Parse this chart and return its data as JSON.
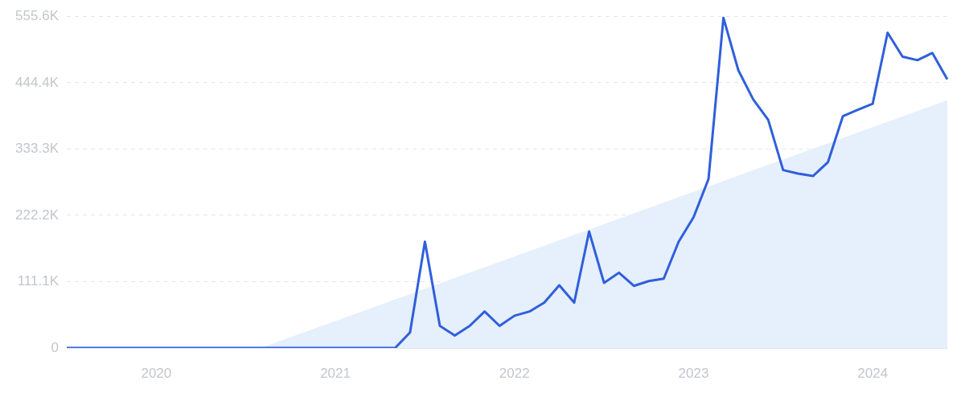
{
  "chart_data": {
    "type": "line",
    "categories": [
      null,
      null,
      null,
      null,
      null,
      null,
      "2020",
      null,
      null,
      null,
      null,
      null,
      null,
      null,
      null,
      null,
      null,
      null,
      "2021",
      null,
      null,
      null,
      null,
      null,
      null,
      null,
      null,
      null,
      null,
      null,
      "2022",
      null,
      null,
      null,
      null,
      null,
      null,
      null,
      null,
      null,
      null,
      null,
      "2023",
      null,
      null,
      null,
      null,
      null,
      null,
      null,
      null,
      null,
      null,
      null,
      "2024",
      null,
      null,
      null,
      null,
      null
    ],
    "series": [
      {
        "type": "line",
        "color": "#2f5fdc",
        "values": [
          0,
          0,
          0,
          0,
          0,
          0,
          0,
          0,
          0,
          0,
          0,
          0,
          0,
          0,
          0,
          0,
          0,
          0,
          0,
          0,
          0,
          0,
          0,
          26000,
          178000,
          37000,
          21000,
          37000,
          61000,
          37000,
          54000,
          61000,
          76000,
          105000,
          76000,
          195000,
          109000,
          126000,
          104000,
          112000,
          116000,
          178000,
          219000,
          283000,
          553000,
          465000,
          416000,
          382000,
          298000,
          292000,
          288000,
          311000,
          388000,
          399000,
          409000,
          528000,
          488000,
          482000,
          494000,
          450000
        ]
      },
      {
        "type": "area",
        "color": "#e6effc",
        "values": [
          null,
          null,
          null,
          null,
          null,
          null,
          null,
          null,
          null,
          null,
          null,
          null,
          null,
          0,
          null,
          null,
          null,
          null,
          null,
          null,
          null,
          null,
          null,
          null,
          null,
          null,
          null,
          null,
          null,
          null,
          null,
          null,
          null,
          null,
          null,
          null,
          null,
          null,
          null,
          null,
          null,
          null,
          null,
          null,
          null,
          null,
          null,
          null,
          null,
          null,
          null,
          null,
          null,
          null,
          null,
          null,
          null,
          null,
          null,
          415000
        ]
      }
    ],
    "ylim": [
      0,
      555600
    ],
    "yticks": [
      0,
      {
        "value": 111100,
        "label": "111.1K"
      },
      {
        "value": 222200,
        "label": "222.2K"
      },
      {
        "value": 333300,
        "label": "333.3K"
      },
      {
        "value": 444400,
        "label": "444.4K"
      },
      {
        "value": 555600,
        "label": "555.6K"
      }
    ],
    "grid": "y",
    "legend": false
  }
}
